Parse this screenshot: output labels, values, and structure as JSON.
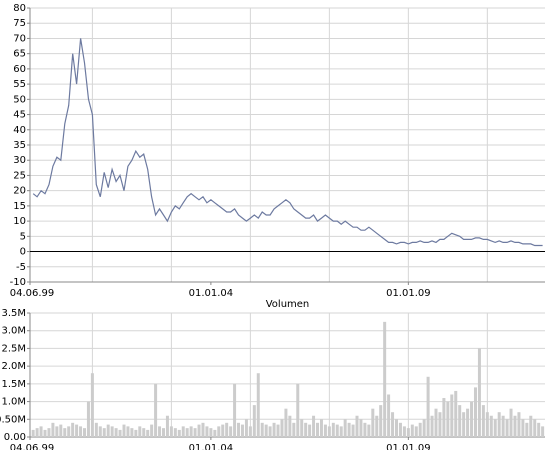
{
  "chart_data": [
    {
      "type": "line",
      "x": [
        1999.5,
        1999.6,
        1999.7,
        1999.8,
        1999.9,
        2000.0,
        2000.1,
        2000.2,
        2000.3,
        2000.4,
        2000.5,
        2000.6,
        2000.7,
        2000.8,
        2000.9,
        2001.0,
        2001.1,
        2001.2,
        2001.3,
        2001.4,
        2001.5,
        2001.6,
        2001.7,
        2001.8,
        2001.9,
        2002.0,
        2002.1,
        2002.2,
        2002.3,
        2002.4,
        2002.5,
        2002.6,
        2002.7,
        2002.8,
        2002.9,
        2003.0,
        2003.1,
        2003.2,
        2003.3,
        2003.4,
        2003.5,
        2003.6,
        2003.7,
        2003.8,
        2003.9,
        2004.0,
        2004.1,
        2004.2,
        2004.3,
        2004.4,
        2004.5,
        2004.6,
        2004.7,
        2004.8,
        2004.9,
        2005.0,
        2005.1,
        2005.2,
        2005.3,
        2005.4,
        2005.5,
        2005.6,
        2005.7,
        2005.8,
        2005.9,
        2006.0,
        2006.1,
        2006.2,
        2006.3,
        2006.4,
        2006.5,
        2006.6,
        2006.7,
        2006.8,
        2006.9,
        2007.0,
        2007.1,
        2007.2,
        2007.3,
        2007.4,
        2007.5,
        2007.6,
        2007.7,
        2007.8,
        2007.9,
        2008.0,
        2008.1,
        2008.2,
        2008.3,
        2008.4,
        2008.5,
        2008.6,
        2008.7,
        2008.8,
        2008.9,
        2009.0,
        2009.1,
        2009.2,
        2009.3,
        2009.4,
        2009.5,
        2009.6,
        2009.7,
        2009.8,
        2009.9,
        2010.0,
        2010.1,
        2010.2,
        2010.3,
        2010.4,
        2010.5,
        2010.6,
        2010.7,
        2010.8,
        2010.9,
        2011.0,
        2011.1,
        2011.2,
        2011.3,
        2011.4,
        2011.5,
        2011.6,
        2011.7,
        2011.8,
        2011.9,
        2012.0,
        2012.1,
        2012.2,
        2012.3,
        2012.4
      ],
      "values": [
        19,
        18,
        20,
        19,
        22,
        28,
        31,
        30,
        42,
        48,
        65,
        55,
        70,
        62,
        50,
        45,
        22,
        18,
        26,
        21,
        27,
        23,
        25,
        20,
        28,
        30,
        33,
        31,
        32,
        27,
        18,
        12,
        14,
        12,
        10,
        13,
        15,
        14,
        16,
        18,
        19,
        18,
        17,
        18,
        16,
        17,
        16,
        15,
        14,
        13,
        13,
        14,
        12,
        11,
        10,
        11,
        12,
        11,
        13,
        12,
        12,
        14,
        15,
        16,
        17,
        16,
        14,
        13,
        12,
        11,
        11,
        12,
        10,
        11,
        12,
        11,
        10,
        10,
        9,
        10,
        9,
        8,
        8,
        7,
        7,
        8,
        7,
        6,
        5,
        4,
        3,
        3,
        2.5,
        3,
        3,
        2.5,
        3,
        3,
        3.5,
        3,
        3,
        3.5,
        3,
        4,
        4,
        5,
        6,
        5.5,
        5,
        4,
        4,
        4,
        4.5,
        4.5,
        4,
        4,
        3.5,
        3,
        3.5,
        3,
        3,
        3.5,
        3,
        3,
        2.5,
        2.5,
        2.5,
        2,
        2,
        2
      ],
      "color": "#6d7aa0",
      "xlim": [
        1999.42,
        2012.46
      ],
      "xticks": [
        {
          "value": 1999.42,
          "label": "04.06.99"
        },
        {
          "value": 2004,
          "label": "01.01.04"
        },
        {
          "value": 2009,
          "label": "01.01.09"
        }
      ],
      "xgrid": [
        2001,
        2003,
        2005,
        2007,
        2009,
        2011
      ],
      "ylim": [
        -10,
        80
      ],
      "yticks": [
        -10,
        -5,
        0,
        5,
        10,
        15,
        20,
        25,
        30,
        35,
        40,
        45,
        50,
        55,
        60,
        65,
        70,
        75,
        80
      ],
      "grid": true
    },
    {
      "type": "bar",
      "title": "Volumen",
      "x": [
        1999.5,
        1999.6,
        1999.7,
        1999.8,
        1999.9,
        2000.0,
        2000.1,
        2000.2,
        2000.3,
        2000.4,
        2000.5,
        2000.6,
        2000.7,
        2000.8,
        2000.9,
        2001.0,
        2001.1,
        2001.2,
        2001.3,
        2001.4,
        2001.5,
        2001.6,
        2001.7,
        2001.8,
        2001.9,
        2002.0,
        2002.1,
        2002.2,
        2002.3,
        2002.4,
        2002.5,
        2002.6,
        2002.7,
        2002.8,
        2002.9,
        2003.0,
        2003.1,
        2003.2,
        2003.3,
        2003.4,
        2003.5,
        2003.6,
        2003.7,
        2003.8,
        2003.9,
        2004.0,
        2004.1,
        2004.2,
        2004.3,
        2004.4,
        2004.5,
        2004.6,
        2004.7,
        2004.8,
        2004.9,
        2005.0,
        2005.1,
        2005.2,
        2005.3,
        2005.4,
        2005.5,
        2005.6,
        2005.7,
        2005.8,
        2005.9,
        2006.0,
        2006.1,
        2006.2,
        2006.3,
        2006.4,
        2006.5,
        2006.6,
        2006.7,
        2006.8,
        2006.9,
        2007.0,
        2007.1,
        2007.2,
        2007.3,
        2007.4,
        2007.5,
        2007.6,
        2007.7,
        2007.8,
        2007.9,
        2008.0,
        2008.1,
        2008.2,
        2008.3,
        2008.4,
        2008.5,
        2008.6,
        2008.7,
        2008.8,
        2008.9,
        2009.0,
        2009.1,
        2009.2,
        2009.3,
        2009.4,
        2009.5,
        2009.6,
        2009.7,
        2009.8,
        2009.9,
        2010.0,
        2010.1,
        2010.2,
        2010.3,
        2010.4,
        2010.5,
        2010.6,
        2010.7,
        2010.8,
        2010.9,
        2011.0,
        2011.1,
        2011.2,
        2011.3,
        2011.4,
        2011.5,
        2011.6,
        2011.7,
        2011.8,
        2011.9,
        2012.0,
        2012.1,
        2012.2,
        2012.3,
        2012.4
      ],
      "values": [
        200000,
        250000,
        300000,
        200000,
        250000,
        400000,
        300000,
        350000,
        250000,
        300000,
        400000,
        350000,
        300000,
        250000,
        1000000,
        1800000,
        400000,
        300000,
        250000,
        350000,
        300000,
        250000,
        200000,
        350000,
        300000,
        250000,
        200000,
        300000,
        250000,
        200000,
        350000,
        1500000,
        300000,
        250000,
        600000,
        300000,
        250000,
        200000,
        300000,
        250000,
        300000,
        250000,
        350000,
        400000,
        300000,
        250000,
        200000,
        300000,
        350000,
        400000,
        300000,
        1500000,
        400000,
        350000,
        500000,
        300000,
        900000,
        1800000,
        400000,
        350000,
        300000,
        400000,
        350000,
        500000,
        800000,
        600000,
        400000,
        1500000,
        500000,
        400000,
        350000,
        600000,
        400000,
        500000,
        350000,
        300000,
        400000,
        350000,
        300000,
        500000,
        400000,
        350000,
        600000,
        500000,
        400000,
        350000,
        800000,
        600000,
        900000,
        3250000,
        1200000,
        700000,
        500000,
        400000,
        300000,
        250000,
        350000,
        300000,
        400000,
        500000,
        1700000,
        600000,
        800000,
        700000,
        1100000,
        1000000,
        1200000,
        1300000,
        900000,
        700000,
        800000,
        1000000,
        1400000,
        2500000,
        900000,
        700000,
        600000,
        500000,
        700000,
        600000,
        500000,
        800000,
        600000,
        700000,
        500000,
        400000,
        600000,
        500000,
        400000,
        300000
      ],
      "color": "#cccccc",
      "xlim": [
        1999.42,
        2012.46
      ],
      "xticks": [
        {
          "value": 1999.42,
          "label": "04.06.99"
        },
        {
          "value": 2004,
          "label": "01.01.04"
        },
        {
          "value": 2009,
          "label": "01.01.09"
        }
      ],
      "xgrid": [
        2001,
        2003,
        2005,
        2007,
        2009,
        2011
      ],
      "ylim": [
        0,
        3500000
      ],
      "yticks": [
        {
          "value": 0,
          "label": "0.00"
        },
        {
          "value": 500000,
          "label": "0.50M"
        },
        {
          "value": 1000000,
          "label": "1.0M"
        },
        {
          "value": 1500000,
          "label": "1.5M"
        },
        {
          "value": 2000000,
          "label": "2.0M"
        },
        {
          "value": 2500000,
          "label": "2.5M"
        },
        {
          "value": 3000000,
          "label": "3.0M"
        },
        {
          "value": 3500000,
          "label": "3.5M"
        }
      ],
      "grid": true
    }
  ]
}
